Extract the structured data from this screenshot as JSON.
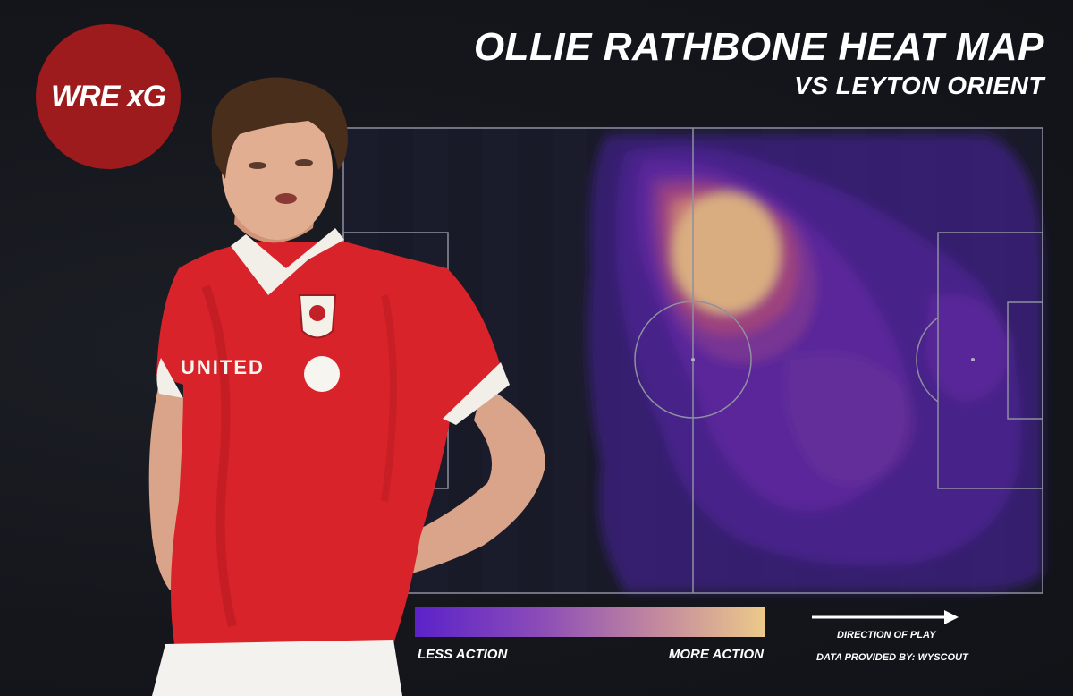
{
  "logo": {
    "text": "WRE xG",
    "color": "#9d1b1c"
  },
  "header": {
    "title": "OLLIE RATHBONE HEAT MAP",
    "subtitle": "VS LEYTON ORIENT"
  },
  "player": {
    "shirt_sponsor": "UNITED",
    "shirt_color": "#d8232a"
  },
  "heatmap": {
    "color_low": "#5b22c9",
    "color_high": "#ecc98a"
  },
  "legend": {
    "low_label": "LESS ACTION",
    "high_label": "MORE ACTION"
  },
  "footer": {
    "direction_label": "DIRECTION OF PLAY",
    "source": "DATA PROVIDED BY: WYSCOUT"
  }
}
